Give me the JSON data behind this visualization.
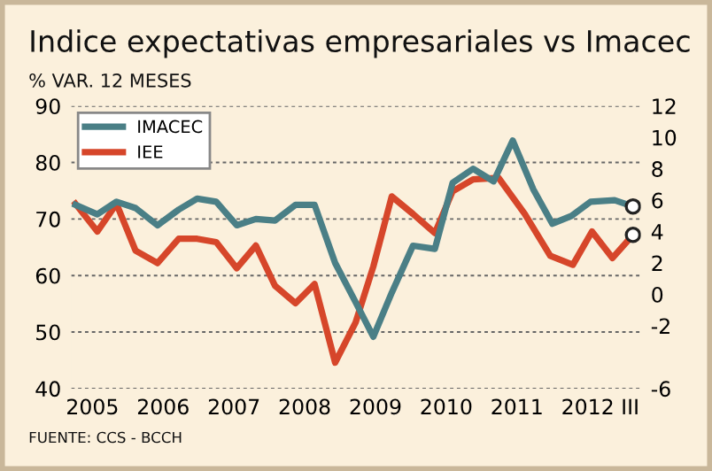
{
  "chart_data": {
    "type": "line",
    "title": "Indice expectativas empresariales vs Imacec",
    "subtitle": "% VAR. 12 MESES",
    "annotations": [
      "FUENTE: CCS - BCCH"
    ],
    "xlim": [
      2004.7,
      2012.75
    ],
    "xticks": [
      {
        "value": 2005,
        "label": "2005"
      },
      {
        "value": 2006,
        "label": "2006"
      },
      {
        "value": 2007,
        "label": "2007"
      },
      {
        "value": 2008,
        "label": "2008"
      },
      {
        "value": 2009,
        "label": "2009"
      },
      {
        "value": 2010,
        "label": "2010"
      },
      {
        "value": 2011,
        "label": "2011"
      },
      {
        "value": 2012,
        "label": "2012"
      },
      {
        "value": 2012.6,
        "label": "III"
      }
    ],
    "ylim": [
      40,
      90
    ],
    "yticks": [
      40,
      50,
      60,
      70,
      80,
      90
    ],
    "y2lim": [
      -6,
      12
    ],
    "y2ticks": [
      -6,
      -2,
      0,
      2,
      4,
      6,
      8,
      10,
      12
    ],
    "grid": "y",
    "legend": "top left",
    "line_style": "solid",
    "marker": "none",
    "series": [
      {
        "name": "IMACEC",
        "color": "#4a7f86",
        "axis": "y2",
        "x": [
          2004.76,
          2005.07,
          2005.34,
          2005.61,
          2005.92,
          2006.22,
          2006.48,
          2006.75,
          2007.04,
          2007.31,
          2007.58,
          2007.87,
          2008.14,
          2008.43,
          2008.72,
          2008.97,
          2009.23,
          2009.53,
          2009.84,
          2010.09,
          2010.38,
          2010.67,
          2010.94,
          2011.23,
          2011.5,
          2011.77,
          2012.04,
          2012.38,
          2012.64
        ],
        "values": [
          5.7,
          5.1,
          5.9,
          5.5,
          4.4,
          5.4,
          6.1,
          5.9,
          4.4,
          4.8,
          4.7,
          5.7,
          5.7,
          2.0,
          -0.5,
          -2.7,
          0.1,
          3.1,
          2.9,
          7.1,
          8.0,
          7.2,
          9.8,
          6.7,
          4.5,
          5.0,
          5.9,
          6.0,
          5.6
        ]
      },
      {
        "name": "IEE",
        "color": "#d6462a",
        "x": [
          2004.76,
          2005.07,
          2005.34,
          2005.61,
          2005.92,
          2006.22,
          2006.48,
          2006.75,
          2007.04,
          2007.31,
          2007.58,
          2007.87,
          2008.14,
          2008.43,
          2008.72,
          2008.97,
          2009.23,
          2009.53,
          2009.84,
          2010.09,
          2010.38,
          2010.74,
          2011.11,
          2011.47,
          2011.79,
          2012.06,
          2012.35,
          2012.64
        ],
        "values": [
          72.7,
          67.8,
          72.7,
          64.4,
          62.2,
          66.5,
          66.5,
          65.9,
          61.3,
          65.3,
          58.2,
          55.1,
          58.5,
          44.6,
          51.7,
          61.6,
          74.0,
          70.9,
          67.5,
          74.9,
          77.0,
          77.3,
          70.9,
          63.5,
          61.9,
          67.8,
          63.1,
          67.2
        ]
      },
      {
        "type": "scatter",
        "marker": "circle",
        "color": "#222222",
        "axis": "y2",
        "x": [
          2012.64
        ],
        "values": [
          5.6
        ]
      },
      {
        "type": "scatter",
        "marker": "circle",
        "color": "#222222",
        "x": [
          2012.64
        ],
        "values": [
          67.2
        ]
      }
    ]
  }
}
